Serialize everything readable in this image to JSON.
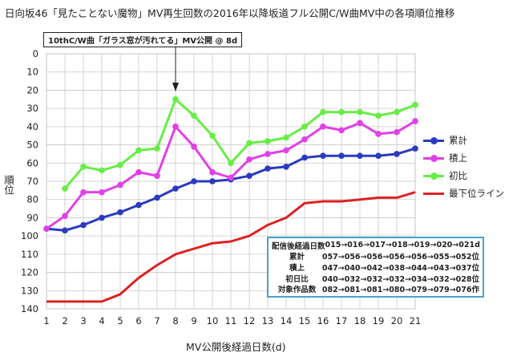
{
  "title": "日向坂46「見たことない魔物」MV再生回数の2016年以降坂道フル公開C/W曲MV中の各項順位推移",
  "annotation": "10thC/W曲「ガラス窓が汚れてる」MV公開 @ 8d",
  "info_box": {
    "rows": [
      {
        "label": "配信後経過日数",
        "value": "015→016→017→018→019→020→021d"
      },
      {
        "label": "累計",
        "value": "057→056→056→056→056→055→052位"
      },
      {
        "label": "積上",
        "value": "047→040→042→038→044→043→037位"
      },
      {
        "label": "初日比",
        "value": "040→032→032→032→034→032→028位"
      },
      {
        "label": "対象作品数",
        "value": "082→081→081→080→079→079→076作"
      }
    ]
  },
  "chart_data": {
    "type": "line",
    "title": "日向坂46「見たことない魔物」MV再生回数の2016年以降坂道フル公開C/W曲MV中の各項順位推移",
    "xlabel": "MV公開後経過日数(d)",
    "ylabel": "順位",
    "x": [
      1,
      2,
      3,
      4,
      5,
      6,
      7,
      8,
      9,
      10,
      11,
      12,
      13,
      14,
      15,
      16,
      17,
      18,
      19,
      20,
      21
    ],
    "xlim": [
      1,
      21
    ],
    "ylim": [
      0,
      140
    ],
    "y_inverted": true,
    "y_ticks": [
      0,
      10,
      20,
      30,
      40,
      50,
      60,
      70,
      80,
      90,
      100,
      110,
      120,
      130,
      140
    ],
    "grid": true,
    "legend_position": "right",
    "series": [
      {
        "name": "累計",
        "color": "#2a3bbf",
        "marker": true,
        "values": [
          96,
          97,
          94,
          90,
          87,
          83,
          79,
          74,
          70,
          70,
          69,
          67,
          63,
          62,
          57,
          56,
          56,
          56,
          56,
          55,
          52
        ]
      },
      {
        "name": "積上",
        "color": "#e040e8",
        "marker": true,
        "values": [
          96,
          89,
          76,
          76,
          72,
          65,
          67,
          40,
          51,
          65,
          68,
          58,
          55,
          53,
          47,
          40,
          42,
          38,
          44,
          43,
          37
        ]
      },
      {
        "name": "初比",
        "color": "#66ee44",
        "marker": true,
        "values": [
          null,
          74,
          62,
          64,
          61,
          53,
          52,
          25,
          34,
          45,
          60,
          49,
          48,
          46,
          40,
          32,
          32,
          32,
          34,
          32,
          28
        ]
      },
      {
        "name": "最下位ライン",
        "color": "#dd2222",
        "marker": false,
        "values": [
          136,
          136,
          136,
          136,
          132,
          123,
          116,
          110,
          107,
          104,
          103,
          100,
          94,
          90,
          82,
          81,
          81,
          80,
          79,
          79,
          76
        ]
      }
    ],
    "annotation_x": 8
  }
}
